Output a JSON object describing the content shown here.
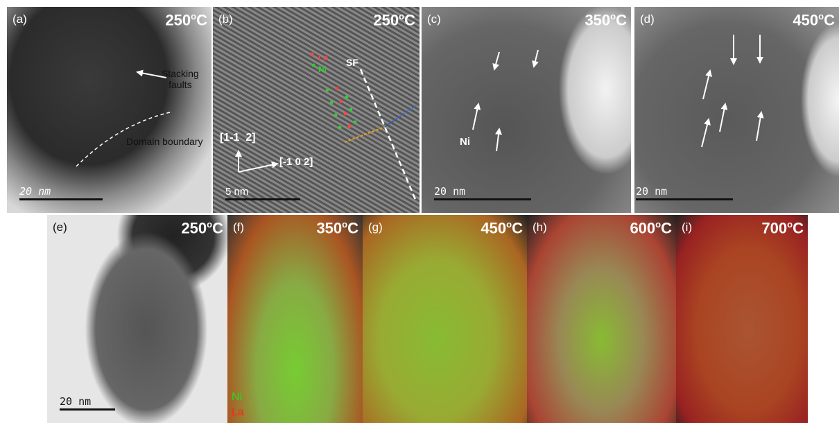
{
  "panels": [
    {
      "label": "(a)",
      "temperature": {
        "number": "250",
        "degree": "o",
        "unit": "C"
      },
      "scale_bar": "20 nm",
      "annotations": [
        "Stacking",
        "faults",
        "Domain boundary"
      ]
    },
    {
      "label": "(b)",
      "temperature": {
        "number": "250",
        "degree": "o",
        "unit": "C"
      },
      "scale_bar": "5 nm",
      "annotations": [
        "La",
        "Ni",
        "SF",
        "[1-1  2]",
        "[-1 0 2]"
      ]
    },
    {
      "label": "(c)",
      "temperature": {
        "number": "350",
        "degree": "o",
        "unit": "C"
      },
      "scale_bar": "20 nm",
      "annotations": [
        "Ni"
      ]
    },
    {
      "label": "(d)",
      "temperature": {
        "number": "450",
        "degree": "o",
        "unit": "C"
      },
      "scale_bar": "20 nm"
    },
    {
      "label": "(e)",
      "temperature": {
        "number": "250",
        "degree": "o",
        "unit": "C"
      },
      "scale_bar": "20 nm"
    },
    {
      "label": "(f)",
      "temperature": {
        "number": "350",
        "degree": "o",
        "unit": "C"
      },
      "legend": [
        "Ni",
        "La"
      ]
    },
    {
      "label": "(g)",
      "temperature": {
        "number": "450",
        "degree": "o",
        "unit": "C"
      }
    },
    {
      "label": "(h)",
      "temperature": {
        "number": "600",
        "degree": "o",
        "unit": "C"
      }
    },
    {
      "label": "(i)",
      "temperature": {
        "number": "700",
        "degree": "o",
        "unit": "C"
      }
    }
  ]
}
